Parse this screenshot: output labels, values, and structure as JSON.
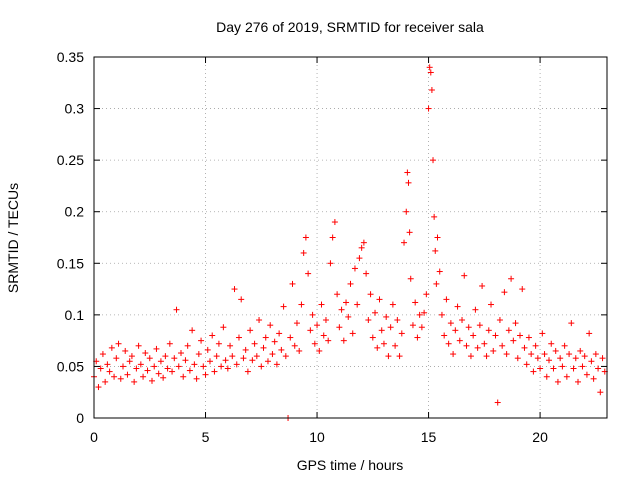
{
  "chart_data": {
    "type": "scatter",
    "title": "Day 276 of 2019, SRMTID for receiver sala",
    "xlabel": "GPS time / hours",
    "ylabel": "SRMTID / TECUs",
    "xlim": [
      0,
      23
    ],
    "ylim": [
      0,
      0.35
    ],
    "x_ticks": [
      0,
      5,
      10,
      15,
      20
    ],
    "y_ticks": [
      0,
      0.05,
      0.1,
      0.15,
      0.2,
      0.25,
      0.3,
      0.35
    ],
    "x_tick_labels": [
      "0",
      "5",
      "10",
      "15",
      "20"
    ],
    "y_tick_labels": [
      "0",
      "0.05",
      "0.1",
      "0.15",
      "0.2",
      "0.25",
      "0.3",
      "0.35"
    ],
    "grid": true,
    "marker": "+",
    "color": "#ff0000",
    "series": [
      {
        "name": "SRMTID",
        "points": [
          [
            0.0,
            0.04
          ],
          [
            0.1,
            0.055
          ],
          [
            0.2,
            0.03
          ],
          [
            0.3,
            0.048
          ],
          [
            0.4,
            0.062
          ],
          [
            0.5,
            0.035
          ],
          [
            0.6,
            0.052
          ],
          [
            0.7,
            0.045
          ],
          [
            0.8,
            0.068
          ],
          [
            0.9,
            0.04
          ],
          [
            1.0,
            0.058
          ],
          [
            1.1,
            0.072
          ],
          [
            1.2,
            0.038
          ],
          [
            1.3,
            0.05
          ],
          [
            1.4,
            0.065
          ],
          [
            1.5,
            0.042
          ],
          [
            1.6,
            0.055
          ],
          [
            1.7,
            0.06
          ],
          [
            1.8,
            0.035
          ],
          [
            1.9,
            0.048
          ],
          [
            2.0,
            0.07
          ],
          [
            2.1,
            0.052
          ],
          [
            2.2,
            0.04
          ],
          [
            2.3,
            0.063
          ],
          [
            2.4,
            0.046
          ],
          [
            2.5,
            0.058
          ],
          [
            2.6,
            0.036
          ],
          [
            2.7,
            0.05
          ],
          [
            2.8,
            0.067
          ],
          [
            2.9,
            0.043
          ],
          [
            3.0,
            0.055
          ],
          [
            3.1,
            0.039
          ],
          [
            3.2,
            0.06
          ],
          [
            3.3,
            0.048
          ],
          [
            3.4,
            0.072
          ],
          [
            3.5,
            0.045
          ],
          [
            3.6,
            0.058
          ],
          [
            3.7,
            0.105
          ],
          [
            3.8,
            0.05
          ],
          [
            3.9,
            0.063
          ],
          [
            4.0,
            0.04
          ],
          [
            4.1,
            0.056
          ],
          [
            4.2,
            0.07
          ],
          [
            4.3,
            0.046
          ],
          [
            4.4,
            0.085
          ],
          [
            4.5,
            0.052
          ],
          [
            4.6,
            0.038
          ],
          [
            4.7,
            0.062
          ],
          [
            4.8,
            0.075
          ],
          [
            4.9,
            0.05
          ],
          [
            5.0,
            0.042
          ],
          [
            5.1,
            0.066
          ],
          [
            5.2,
            0.055
          ],
          [
            5.3,
            0.08
          ],
          [
            5.4,
            0.045
          ],
          [
            5.5,
            0.06
          ],
          [
            5.6,
            0.072
          ],
          [
            5.7,
            0.05
          ],
          [
            5.8,
            0.088
          ],
          [
            5.9,
            0.056
          ],
          [
            6.0,
            0.048
          ],
          [
            6.1,
            0.07
          ],
          [
            6.2,
            0.06
          ],
          [
            6.3,
            0.125
          ],
          [
            6.4,
            0.052
          ],
          [
            6.5,
            0.078
          ],
          [
            6.6,
            0.115
          ],
          [
            6.7,
            0.058
          ],
          [
            6.8,
            0.066
          ],
          [
            6.9,
            0.045
          ],
          [
            7.0,
            0.085
          ],
          [
            7.1,
            0.056
          ],
          [
            7.2,
            0.072
          ],
          [
            7.3,
            0.06
          ],
          [
            7.4,
            0.095
          ],
          [
            7.5,
            0.05
          ],
          [
            7.6,
            0.068
          ],
          [
            7.7,
            0.078
          ],
          [
            7.8,
            0.055
          ],
          [
            7.9,
            0.09
          ],
          [
            8.0,
            0.062
          ],
          [
            8.1,
            0.074
          ],
          [
            8.2,
            0.052
          ],
          [
            8.3,
            0.082
          ],
          [
            8.4,
            0.066
          ],
          [
            8.5,
            0.108
          ],
          [
            8.6,
            0.06
          ],
          [
            8.7,
            0.0
          ],
          [
            8.8,
            0.078
          ],
          [
            8.9,
            0.13
          ],
          [
            9.0,
            0.07
          ],
          [
            9.1,
            0.092
          ],
          [
            9.2,
            0.065
          ],
          [
            9.3,
            0.11
          ],
          [
            9.4,
            0.16
          ],
          [
            9.5,
            0.175
          ],
          [
            9.6,
            0.14
          ],
          [
            9.7,
            0.085
          ],
          [
            9.8,
            0.1
          ],
          [
            9.9,
            0.072
          ],
          [
            10.0,
            0.09
          ],
          [
            10.1,
            0.065
          ],
          [
            10.2,
            0.11
          ],
          [
            10.3,
            0.08
          ],
          [
            10.4,
            0.095
          ],
          [
            10.5,
            0.075
          ],
          [
            10.6,
            0.15
          ],
          [
            10.7,
            0.175
          ],
          [
            10.8,
            0.19
          ],
          [
            10.9,
            0.12
          ],
          [
            11.0,
            0.088
          ],
          [
            11.1,
            0.105
          ],
          [
            11.2,
            0.075
          ],
          [
            11.3,
            0.112
          ],
          [
            11.4,
            0.098
          ],
          [
            11.5,
            0.13
          ],
          [
            11.6,
            0.082
          ],
          [
            11.7,
            0.145
          ],
          [
            11.8,
            0.11
          ],
          [
            11.9,
            0.155
          ],
          [
            12.0,
            0.165
          ],
          [
            12.1,
            0.17
          ],
          [
            12.2,
            0.14
          ],
          [
            12.3,
            0.095
          ],
          [
            12.4,
            0.12
          ],
          [
            12.5,
            0.078
          ],
          [
            12.6,
            0.102
          ],
          [
            12.7,
            0.068
          ],
          [
            12.8,
            0.115
          ],
          [
            12.9,
            0.085
          ],
          [
            13.0,
            0.072
          ],
          [
            13.1,
            0.098
          ],
          [
            13.2,
            0.06
          ],
          [
            13.3,
            0.088
          ],
          [
            13.4,
            0.11
          ],
          [
            13.5,
            0.07
          ],
          [
            13.6,
            0.095
          ],
          [
            13.7,
            0.06
          ],
          [
            13.8,
            0.082
          ],
          [
            13.9,
            0.17
          ],
          [
            14.0,
            0.2
          ],
          [
            14.05,
            0.238
          ],
          [
            14.1,
            0.228
          ],
          [
            14.15,
            0.18
          ],
          [
            14.2,
            0.135
          ],
          [
            14.3,
            0.09
          ],
          [
            14.4,
            0.112
          ],
          [
            14.5,
            0.078
          ],
          [
            14.6,
            0.1
          ],
          [
            14.7,
            0.088
          ],
          [
            14.8,
            0.102
          ],
          [
            14.9,
            0.12
          ],
          [
            15.0,
            0.3
          ],
          [
            15.05,
            0.34
          ],
          [
            15.1,
            0.335
          ],
          [
            15.15,
            0.318
          ],
          [
            15.2,
            0.25
          ],
          [
            15.25,
            0.195
          ],
          [
            15.3,
            0.162
          ],
          [
            15.35,
            0.13
          ],
          [
            15.4,
            0.175
          ],
          [
            15.5,
            0.142
          ],
          [
            15.6,
            0.1
          ],
          [
            15.7,
            0.08
          ],
          [
            15.8,
            0.115
          ],
          [
            15.9,
            0.072
          ],
          [
            16.0,
            0.092
          ],
          [
            16.1,
            0.062
          ],
          [
            16.2,
            0.085
          ],
          [
            16.3,
            0.108
          ],
          [
            16.4,
            0.075
          ],
          [
            16.5,
            0.095
          ],
          [
            16.6,
            0.138
          ],
          [
            16.7,
            0.07
          ],
          [
            16.8,
            0.088
          ],
          [
            16.9,
            0.06
          ],
          [
            17.0,
            0.08
          ],
          [
            17.1,
            0.105
          ],
          [
            17.2,
            0.068
          ],
          [
            17.3,
            0.09
          ],
          [
            17.4,
            0.128
          ],
          [
            17.5,
            0.072
          ],
          [
            17.6,
            0.06
          ],
          [
            17.7,
            0.085
          ],
          [
            17.8,
            0.11
          ],
          [
            17.9,
            0.065
          ],
          [
            18.0,
            0.08
          ],
          [
            18.1,
            0.015
          ],
          [
            18.2,
            0.095
          ],
          [
            18.3,
            0.07
          ],
          [
            18.4,
            0.122
          ],
          [
            18.5,
            0.062
          ],
          [
            18.6,
            0.085
          ],
          [
            18.7,
            0.135
          ],
          [
            18.8,
            0.075
          ],
          [
            18.9,
            0.092
          ],
          [
            19.0,
            0.058
          ],
          [
            19.1,
            0.08
          ],
          [
            19.2,
            0.125
          ],
          [
            19.3,
            0.068
          ],
          [
            19.4,
            0.052
          ],
          [
            19.5,
            0.078
          ],
          [
            19.6,
            0.062
          ],
          [
            19.7,
            0.045
          ],
          [
            19.8,
            0.07
          ],
          [
            19.9,
            0.058
          ],
          [
            20.0,
            0.048
          ],
          [
            20.1,
            0.082
          ],
          [
            20.2,
            0.062
          ],
          [
            20.3,
            0.04
          ],
          [
            20.4,
            0.056
          ],
          [
            20.5,
            0.072
          ],
          [
            20.6,
            0.048
          ],
          [
            20.7,
            0.065
          ],
          [
            20.8,
            0.035
          ],
          [
            20.9,
            0.058
          ],
          [
            21.0,
            0.05
          ],
          [
            21.1,
            0.07
          ],
          [
            21.2,
            0.04
          ],
          [
            21.3,
            0.062
          ],
          [
            21.4,
            0.092
          ],
          [
            21.5,
            0.048
          ],
          [
            21.6,
            0.058
          ],
          [
            21.7,
            0.035
          ],
          [
            21.8,
            0.065
          ],
          [
            21.9,
            0.05
          ],
          [
            22.0,
            0.06
          ],
          [
            22.1,
            0.042
          ],
          [
            22.2,
            0.082
          ],
          [
            22.3,
            0.055
          ],
          [
            22.4,
            0.038
          ],
          [
            22.5,
            0.062
          ],
          [
            22.6,
            0.048
          ],
          [
            22.7,
            0.025
          ],
          [
            22.8,
            0.058
          ],
          [
            22.9,
            0.045
          ]
        ]
      }
    ]
  }
}
